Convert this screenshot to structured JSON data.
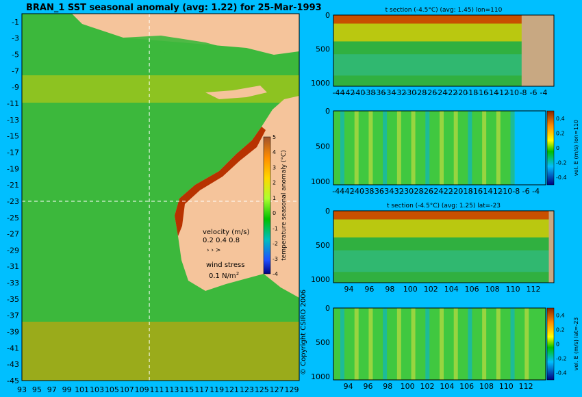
{
  "main_title": "BRAN_1  SST seasonal anomaly  (avg: 1.22) for 25-Mar-1993",
  "copyright": "© Copyright CSIRO 2006",
  "colors": {
    "background": "#00bfff",
    "land": "#f5c49b",
    "land_section": "#c8a882",
    "crosshair": "#ffffff"
  },
  "chart_data": [
    {
      "type": "heatmap",
      "title": "BRAN_1  SST seasonal anomaly  (avg: 1.22) for 25-Mar-1993",
      "x_ticks": [
        "93",
        "95",
        "97",
        "99",
        "101",
        "103",
        "105",
        "107",
        "109",
        "111",
        "113",
        "115",
        "117",
        "119",
        "121",
        "123",
        "125",
        "127",
        "129"
      ],
      "y_ticks": [
        "-1",
        "-3",
        "-5",
        "-7",
        "-9",
        "-11",
        "-13",
        "-15",
        "-17",
        "-19",
        "-21",
        "-23",
        "-25",
        "-27",
        "-29",
        "-31",
        "-33",
        "-35",
        "-37",
        "-39",
        "-41",
        "-43",
        "-45"
      ],
      "xlim": [
        93,
        130
      ],
      "ylim": [
        -45,
        0
      ],
      "crosshair": {
        "lon": 110,
        "lat": -23
      },
      "colorbar": {
        "label": "temperature seasonal anomaly (°C)",
        "ticks": [
          "5",
          "4",
          "3",
          "2",
          "1",
          "0",
          "-1",
          "-2",
          "-3",
          "-4"
        ],
        "range": [
          -4,
          5
        ]
      },
      "legend": {
        "velocity_label": "velocity (m/s)",
        "velocity_scale": "0.2 0.4 0.8",
        "wind_label": "wind stress",
        "wind_scale": "0.1 N/m"
      }
    },
    {
      "type": "heatmap",
      "title": "t section (-4.5°C) (avg: 1.45) lon=110",
      "x_ticks": [
        "-44",
        "-42",
        "-40",
        "-38",
        "-36",
        "-34",
        "-32",
        "-30",
        "-28",
        "-26",
        "-24",
        "-22",
        "-20",
        "-18",
        "-16",
        "-14",
        "-12",
        "-10",
        "-8",
        "-6",
        "-4"
      ],
      "y_ticks": [
        "0",
        "500",
        "1000"
      ],
      "xlim": [
        -45,
        -2
      ],
      "ylim": [
        1050,
        0
      ]
    },
    {
      "type": "heatmap",
      "title": "",
      "x_ticks": [
        "-44",
        "-42",
        "-40",
        "-38",
        "-36",
        "-34",
        "-32",
        "-30",
        "-28",
        "-26",
        "-24",
        "-22",
        "-20",
        "-18",
        "-16",
        "-14",
        "-12",
        "-10",
        "-8",
        "-6",
        "-4"
      ],
      "y_ticks": [
        "0",
        "500",
        "1000"
      ],
      "xlim": [
        -45,
        -2
      ],
      "ylim": [
        1050,
        0
      ],
      "colorbar": {
        "label": "vel. E (m/s) lon=110",
        "ticks": [
          "0.4",
          "0.2",
          "0",
          "-0.2",
          "-0.4"
        ],
        "range": [
          -0.5,
          0.5
        ]
      }
    },
    {
      "type": "heatmap",
      "title": "t section (-4.5°C) (avg: 1.25) lat=-23",
      "x_ticks": [
        "94",
        "96",
        "98",
        "100",
        "102",
        "104",
        "106",
        "108",
        "110",
        "112"
      ],
      "y_ticks": [
        "0",
        "500",
        "1000"
      ],
      "xlim": [
        92.5,
        114
      ],
      "ylim": [
        1050,
        0
      ]
    },
    {
      "type": "heatmap",
      "title": "",
      "x_ticks": [
        "94",
        "96",
        "98",
        "100",
        "102",
        "104",
        "106",
        "108",
        "110",
        "112"
      ],
      "y_ticks": [
        "0",
        "500",
        "1000"
      ],
      "xlim": [
        92.5,
        114
      ],
      "ylim": [
        1050,
        0
      ],
      "colorbar": {
        "label": "vel. E (m/s) lat=-23",
        "ticks": [
          "0.4",
          "0.2",
          "0",
          "-0.2",
          "-0.4"
        ],
        "range": [
          -0.5,
          0.5
        ]
      }
    }
  ]
}
